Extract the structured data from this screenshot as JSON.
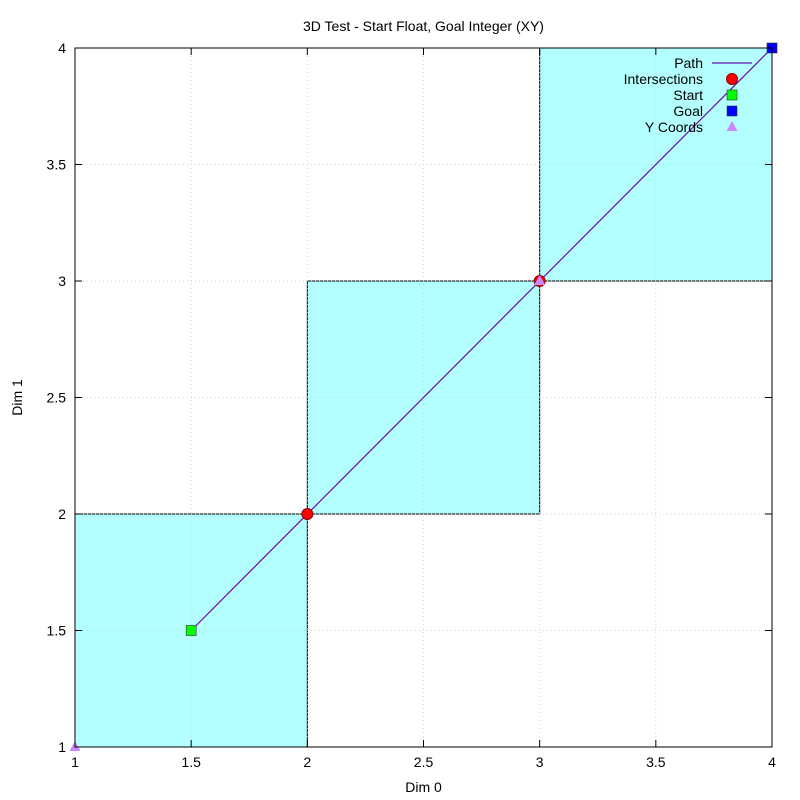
{
  "chart_data": {
    "type": "line",
    "title": "3D Test - Start Float, Goal Integer (XY)",
    "xlabel": "Dim 0",
    "ylabel": "Dim 1",
    "xlim": [
      1,
      4
    ],
    "ylim": [
      1,
      4
    ],
    "x_ticks": [
      "1",
      "1.5",
      "2",
      "2.5",
      "3",
      "3.5",
      "4"
    ],
    "y_ticks": [
      "1",
      "1.5",
      "2",
      "2.5",
      "3",
      "3.5",
      "4"
    ],
    "grid": true,
    "legend_position": "top-right",
    "cells": [
      {
        "x": [
          1,
          2
        ],
        "y": [
          1,
          2
        ]
      },
      {
        "x": [
          2,
          3
        ],
        "y": [
          2,
          3
        ]
      },
      {
        "x": [
          3,
          4
        ],
        "y": [
          3,
          4
        ]
      }
    ],
    "cell_color": "#b3ffff",
    "series": [
      {
        "name": "Path",
        "kind": "line",
        "color": "#6a0dad",
        "points": [
          [
            1.5,
            1.5
          ],
          [
            4,
            4
          ]
        ]
      },
      {
        "name": "Intersections",
        "kind": "circle",
        "color": "#ff0000",
        "points": [
          [
            2,
            2
          ],
          [
            3,
            3
          ]
        ]
      },
      {
        "name": "Start",
        "kind": "square",
        "color": "#00ff00",
        "points": [
          [
            1.5,
            1.5
          ]
        ]
      },
      {
        "name": "Goal",
        "kind": "square",
        "color": "#0000ff",
        "points": [
          [
            4,
            4
          ]
        ]
      },
      {
        "name": "Y Coords",
        "kind": "triangle",
        "color": "#cc88ff",
        "points": [
          [
            1,
            1
          ],
          [
            3,
            3
          ]
        ]
      }
    ]
  }
}
